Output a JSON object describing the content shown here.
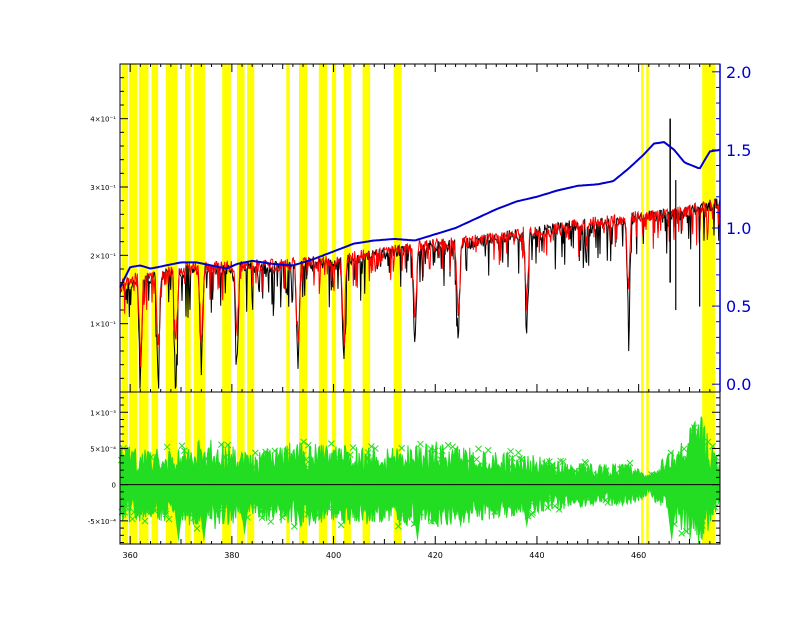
{
  "chart_data": [
    {
      "type": "line",
      "title": "",
      "xlabel": "",
      "ylabel": "",
      "xlim": [
        358,
        476
      ],
      "ylim_left": [
        0,
        4.8
      ],
      "ylim_right": [
        -0.05,
        2.05
      ],
      "left_ticks": [
        {
          "v": 1,
          "label": "1×10⁻¹"
        },
        {
          "v": 2,
          "label": "2×10⁻¹"
        },
        {
          "v": 3,
          "label": "3×10⁻¹"
        },
        {
          "v": 4,
          "label": "4×10⁻¹"
        }
      ],
      "right_ticks": [
        {
          "v": 0.0,
          "label": "0.0"
        },
        {
          "v": 0.5,
          "label": "0.5"
        },
        {
          "v": 1.0,
          "label": "1.0"
        },
        {
          "v": 1.5,
          "label": "1.5"
        },
        {
          "v": 2.0,
          "label": "2.0"
        }
      ],
      "shaded_bands": [
        [
          358.3,
          359.6
        ],
        [
          359.8,
          361.4
        ],
        [
          361.7,
          363.6
        ],
        [
          364.2,
          365.5
        ],
        [
          367.0,
          369.3
        ],
        [
          370.8,
          371.9
        ],
        [
          372.5,
          374.7
        ],
        [
          378.1,
          379.8
        ],
        [
          381.0,
          382.5
        ],
        [
          383.0,
          384.4
        ],
        [
          390.7,
          391.4
        ],
        [
          393.2,
          394.8
        ],
        [
          397.1,
          398.7
        ],
        [
          399.7,
          400.5
        ],
        [
          402.0,
          403.4
        ],
        [
          405.7,
          407.2
        ],
        [
          411.8,
          413.4
        ],
        [
          460.5,
          461.0
        ],
        [
          461.5,
          462.0
        ],
        [
          472.5,
          475.0
        ]
      ],
      "series": [
        {
          "color": "#0000cc",
          "axis": "right",
          "x": [
            358,
            360,
            362,
            364,
            367,
            370,
            373,
            376,
            379,
            381,
            384,
            388,
            392,
            396,
            400,
            404,
            408,
            412,
            416,
            420,
            424,
            428,
            432,
            436,
            440,
            444,
            448,
            452,
            455,
            458,
            461,
            463,
            465,
            467,
            469,
            472,
            474,
            476
          ],
          "values": [
            0.62,
            0.75,
            0.76,
            0.74,
            0.76,
            0.78,
            0.78,
            0.76,
            0.74,
            0.77,
            0.79,
            0.77,
            0.76,
            0.8,
            0.85,
            0.9,
            0.92,
            0.93,
            0.92,
            0.96,
            1.0,
            1.06,
            1.12,
            1.17,
            1.2,
            1.24,
            1.27,
            1.28,
            1.3,
            1.38,
            1.47,
            1.54,
            1.55,
            1.5,
            1.42,
            1.38,
            1.49,
            1.5
          ]
        },
        {
          "color": "#000000",
          "axis": "left",
          "baseline_x": [
            358,
            362,
            366,
            370,
            374,
            378,
            382,
            386,
            390,
            396,
            400,
            404,
            408,
            412,
            416,
            420,
            424,
            428,
            432,
            436,
            440,
            444,
            448,
            452,
            456,
            460,
            464,
            468,
            470,
            472,
            476
          ],
          "baseline": [
            1.5,
            1.65,
            1.7,
            1.75,
            1.8,
            1.8,
            1.85,
            1.8,
            1.85,
            1.9,
            1.85,
            1.95,
            2.0,
            2.05,
            2.1,
            2.15,
            2.15,
            2.2,
            2.25,
            2.3,
            2.35,
            2.4,
            2.45,
            2.45,
            2.5,
            2.55,
            2.6,
            2.6,
            2.65,
            2.7,
            2.75
          ]
        },
        {
          "color": "#ff0000",
          "axis": "left",
          "baseline_x": [
            358,
            362,
            366,
            370,
            374,
            378,
            382,
            386,
            390,
            396,
            400,
            404,
            408,
            412,
            416,
            420,
            424,
            428,
            432,
            436,
            440,
            444,
            448,
            452,
            456,
            460,
            464,
            468,
            470,
            472,
            476
          ],
          "baseline": [
            1.55,
            1.7,
            1.75,
            1.8,
            1.82,
            1.82,
            1.85,
            1.85,
            1.87,
            1.9,
            1.9,
            1.98,
            2.02,
            2.07,
            2.12,
            2.15,
            2.18,
            2.22,
            2.27,
            2.32,
            2.35,
            2.4,
            2.45,
            2.48,
            2.52,
            2.57,
            2.6,
            2.63,
            2.66,
            2.7,
            2.75
          ]
        }
      ],
      "notable_dips": [
        362,
        365.5,
        369,
        374,
        381,
        393,
        402,
        416,
        424.5,
        438,
        458
      ]
    },
    {
      "type": "scatter",
      "title": "",
      "xlabel": "",
      "ylabel": "",
      "xlim": [
        358,
        476
      ],
      "ylim": [
        -8.2,
        12.8
      ],
      "x_ticks": [
        {
          "v": 360,
          "label": "360"
        },
        {
          "v": 380,
          "label": "380"
        },
        {
          "v": 400,
          "label": "400"
        },
        {
          "v": 420,
          "label": "420"
        },
        {
          "v": 440,
          "label": "440"
        },
        {
          "v": 460,
          "label": "460"
        }
      ],
      "y_ticks": [
        {
          "v": 10,
          "label": "1×10⁻³"
        },
        {
          "v": 5,
          "label": "5×10⁻⁴"
        },
        {
          "v": 0,
          "label": "0"
        },
        {
          "v": -5,
          "label": "-5×10⁻⁴"
        }
      ],
      "series": [
        {
          "color": "#22dd22",
          "marker": "x",
          "amplitude_x": [
            358,
            364,
            370,
            376,
            384,
            392,
            400,
            410,
            420,
            430,
            440,
            450,
            458,
            462,
            466,
            472,
            476
          ],
          "amplitude": [
            5.5,
            5.0,
            5.5,
            6.5,
            4.5,
            6.0,
            5.5,
            5.5,
            6.0,
            5.0,
            4.0,
            3.0,
            3.0,
            1.5,
            4.5,
            10.0,
            2.5
          ]
        }
      ],
      "zero_line": true
    }
  ]
}
